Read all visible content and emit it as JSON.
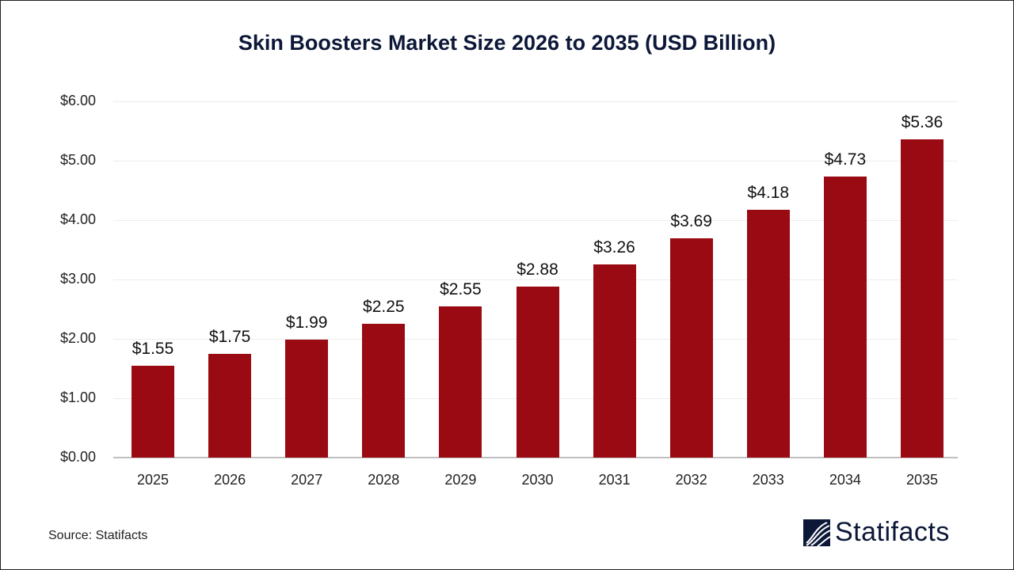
{
  "title": "Skin Boosters Market Size 2026 to 2035 (USD Billion)",
  "source": "Source: Statifacts",
  "logo": {
    "text": "Statifacts",
    "icon": "statifacts-logo-icon"
  },
  "colors": {
    "bar": "#9a0a12",
    "title": "#0d1838",
    "grid": "#ececec",
    "axis": "#bfbfbf"
  },
  "chart_data": {
    "type": "bar",
    "title": "Skin Boosters Market Size 2026 to 2035 (USD Billion)",
    "xlabel": "",
    "ylabel": "",
    "categories": [
      "2025",
      "2026",
      "2027",
      "2028",
      "2029",
      "2030",
      "2031",
      "2032",
      "2033",
      "2034",
      "2035"
    ],
    "values": [
      1.55,
      1.75,
      1.99,
      2.25,
      2.55,
      2.88,
      3.26,
      3.69,
      4.18,
      4.73,
      5.36
    ],
    "value_labels": [
      "$1.55",
      "$1.75",
      "$1.99",
      "$2.25",
      "$2.55",
      "$2.88",
      "$3.26",
      "$3.69",
      "$4.18",
      "$4.73",
      "$5.36"
    ],
    "yticks": [
      "$0.00",
      "$1.00",
      "$2.00",
      "$3.00",
      "$4.00",
      "$5.00",
      "$6.00"
    ],
    "ylim": [
      0,
      6
    ],
    "grid": true,
    "legend": "none"
  }
}
